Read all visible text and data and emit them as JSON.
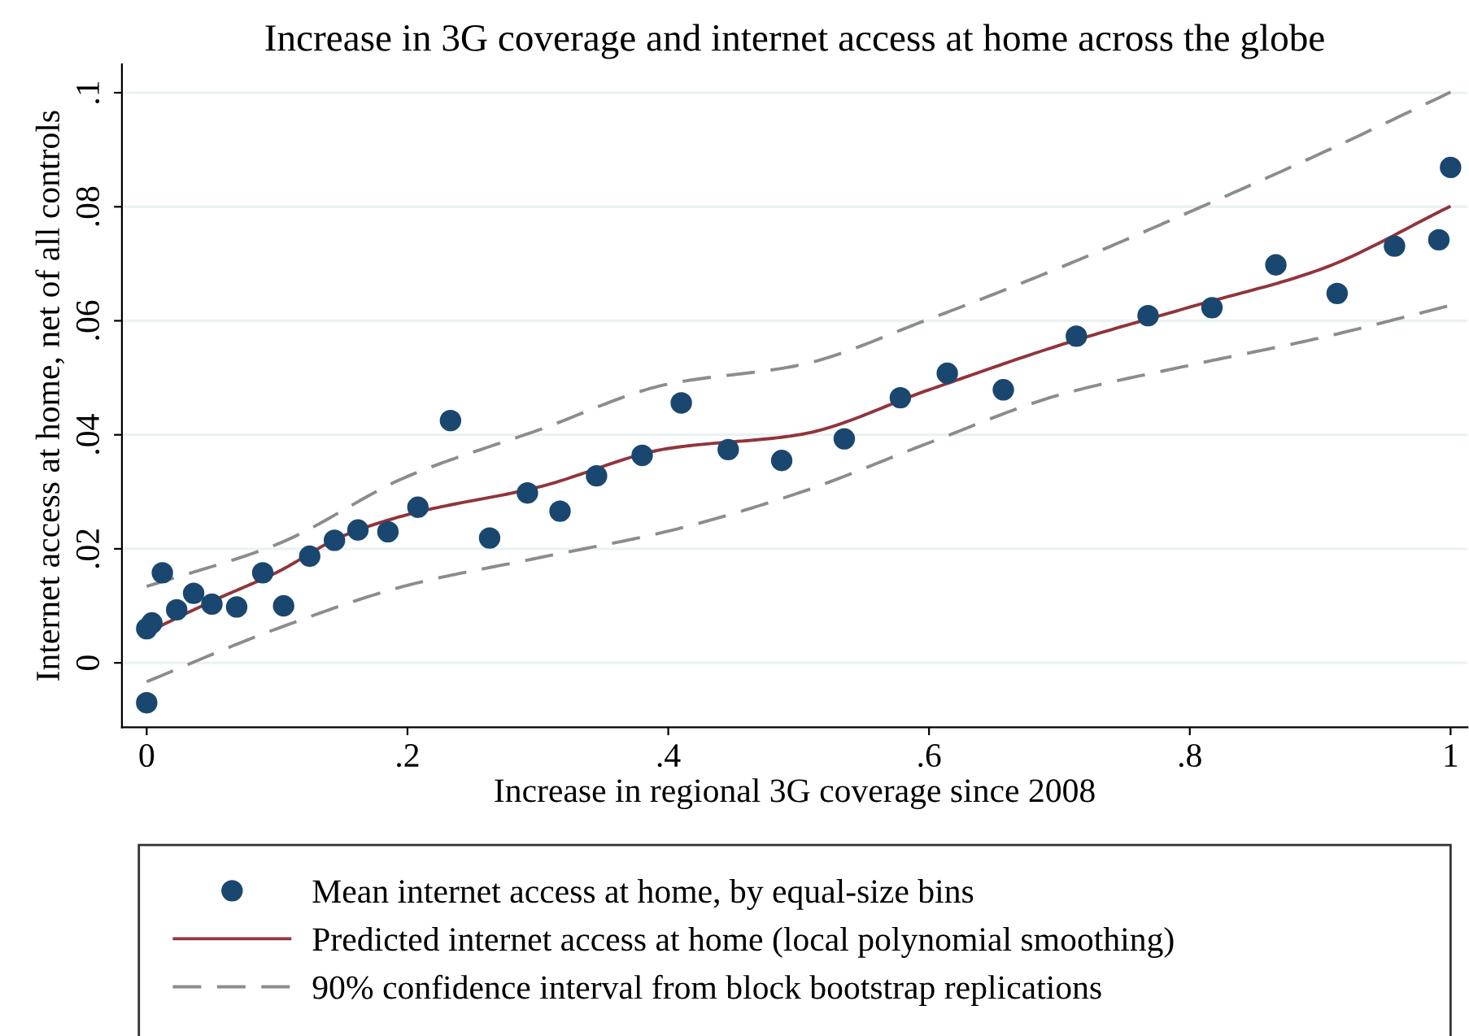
{
  "chart_data": {
    "type": "scatter",
    "title": "Increase in 3G coverage and internet access at home across the globe",
    "xlabel": "Increase in regional 3G coverage since 2008",
    "ylabel": "Internet access at home, net of all controls",
    "xlim": [
      -0.019,
      1.013
    ],
    "ylim": [
      -0.0113,
      0.105
    ],
    "xticks": [
      {
        "value": 0,
        "label": "0"
      },
      {
        "value": 0.2,
        "label": ".2"
      },
      {
        "value": 0.4,
        "label": ".4"
      },
      {
        "value": 0.6,
        "label": ".6"
      },
      {
        "value": 0.8,
        "label": ".8"
      },
      {
        "value": 1,
        "label": "1"
      }
    ],
    "yticks": [
      {
        "value": 0,
        "label": "0"
      },
      {
        "value": 0.02,
        "label": ".02"
      },
      {
        "value": 0.04,
        "label": ".04"
      },
      {
        "value": 0.06,
        "label": ".06"
      },
      {
        "value": 0.08,
        "label": ".08"
      },
      {
        "value": 0.1,
        "label": ".1"
      }
    ],
    "grid": "y",
    "legend": "bottom",
    "series": [
      {
        "name": "Mean internet access at home, by equal-size bins",
        "marker": "circle",
        "color": "#1a476f",
        "x": [
          0,
          0,
          0.004,
          0.012,
          0.023,
          0.036,
          0.05,
          0.069,
          0.089,
          0.105,
          0.125,
          0.144,
          0.162,
          0.185,
          0.208,
          0.233,
          0.263,
          0.292,
          0.317,
          0.345,
          0.38,
          0.41,
          0.446,
          0.487,
          0.535,
          0.578,
          0.614,
          0.657,
          0.713,
          0.768,
          0.817,
          0.866,
          0.913,
          0.957,
          0.991,
          1.0
        ],
        "values": [
          -0.007,
          0.006,
          0.007,
          0.0158,
          0.0093,
          0.0122,
          0.0103,
          0.0098,
          0.0158,
          0.01,
          0.0187,
          0.0215,
          0.0233,
          0.023,
          0.0273,
          0.0425,
          0.0219,
          0.0298,
          0.0266,
          0.0328,
          0.0364,
          0.0456,
          0.0374,
          0.0355,
          0.0393,
          0.0465,
          0.0508,
          0.0479,
          0.0573,
          0.0609,
          0.0623,
          0.0698,
          0.0648,
          0.0731,
          0.0742,
          0.0869
        ]
      },
      {
        "name": "Predicted internet access at home (local polynomial smoothing)",
        "type": "line",
        "line_style": "solid",
        "color": "#90353b",
        "x": [
          0,
          0.05,
          0.1,
          0.15,
          0.2,
          0.3,
          0.4,
          0.5,
          0.6,
          0.7,
          0.8,
          0.9,
          1.0
        ],
        "values": [
          0.0053,
          0.0108,
          0.0159,
          0.0222,
          0.026,
          0.0308,
          0.0376,
          0.04,
          0.0479,
          0.0557,
          0.0624,
          0.069,
          0.0801
        ]
      },
      {
        "name": "90% confidence interval from block bootstrap replications",
        "type": "line",
        "line_style": "dashed",
        "color": "#8c8c8c",
        "x": [
          0,
          0.1,
          0.2,
          0.3,
          0.4,
          0.5,
          0.6,
          0.7,
          0.8,
          0.9,
          1.0
        ],
        "values": [
          0.0134,
          0.0208,
          0.0327,
          0.0408,
          0.0489,
          0.0522,
          0.0603,
          0.0693,
          0.0791,
          0.0893,
          0.1001
        ]
      },
      {
        "type": "line",
        "line_style": "dashed",
        "color": "#8c8c8c",
        "x": [
          0,
          0.1,
          0.2,
          0.3,
          0.4,
          0.5,
          0.6,
          0.7,
          0.8,
          0.9,
          1.0
        ],
        "values": [
          -0.0033,
          0.006,
          0.0136,
          0.0184,
          0.0231,
          0.0298,
          0.0386,
          0.047,
          0.0522,
          0.057,
          0.0627
        ]
      }
    ]
  }
}
